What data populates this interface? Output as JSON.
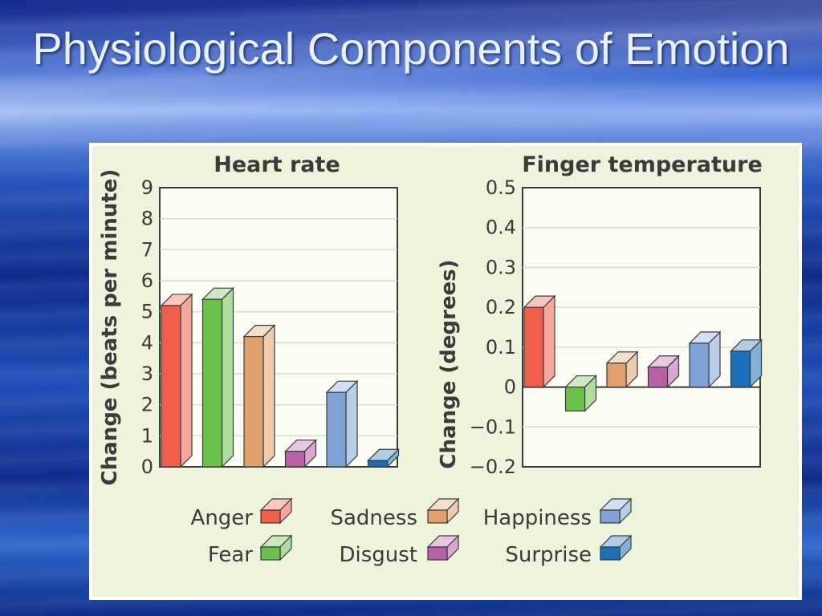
{
  "slide": {
    "title": "Physiological Components of Emotion"
  },
  "chart_data": [
    {
      "type": "bar",
      "title": "Heart rate",
      "ylabel": "Change (beats per minute)",
      "ylim": [
        0,
        9
      ],
      "yticks": [
        "0",
        "1",
        "2",
        "3",
        "4",
        "5",
        "6",
        "7",
        "8",
        "9"
      ],
      "categories": [
        "Anger",
        "Fear",
        "Sadness",
        "Disgust",
        "Happiness",
        "Surprise"
      ],
      "values": [
        5.2,
        5.4,
        4.2,
        0.5,
        2.4,
        0.2
      ],
      "colors": [
        "#ef5e48",
        "#6bc14c",
        "#dfa06c",
        "#b860a8",
        "#7fa2d6",
        "#1a6fb8"
      ]
    },
    {
      "type": "bar",
      "title": "Finger temperature",
      "ylabel": "Change (degrees)",
      "ylim": [
        -0.2,
        0.5
      ],
      "yticks": [
        "0.5",
        "0.4",
        "0.3",
        "0.2",
        "0.1",
        "0",
        "−0.1",
        "−0.2"
      ],
      "categories": [
        "Anger",
        "Fear",
        "Sadness",
        "Disgust",
        "Happiness",
        "Surprise"
      ],
      "values": [
        0.2,
        -0.06,
        0.06,
        0.05,
        0.11,
        0.09
      ],
      "colors": [
        "#ef5e48",
        "#6bc14c",
        "#dfa06c",
        "#b860a8",
        "#7fa2d6",
        "#1a6fb8"
      ]
    }
  ],
  "legend": {
    "items": [
      {
        "label": "Anger",
        "color": "#ef5e48"
      },
      {
        "label": "Sadness",
        "color": "#dfa06c"
      },
      {
        "label": "Happiness",
        "color": "#7fa2d6"
      },
      {
        "label": "Fear",
        "color": "#6bc14c"
      },
      {
        "label": "Disgust",
        "color": "#b860a8"
      },
      {
        "label": "Surprise",
        "color": "#1a6fb8"
      }
    ]
  }
}
